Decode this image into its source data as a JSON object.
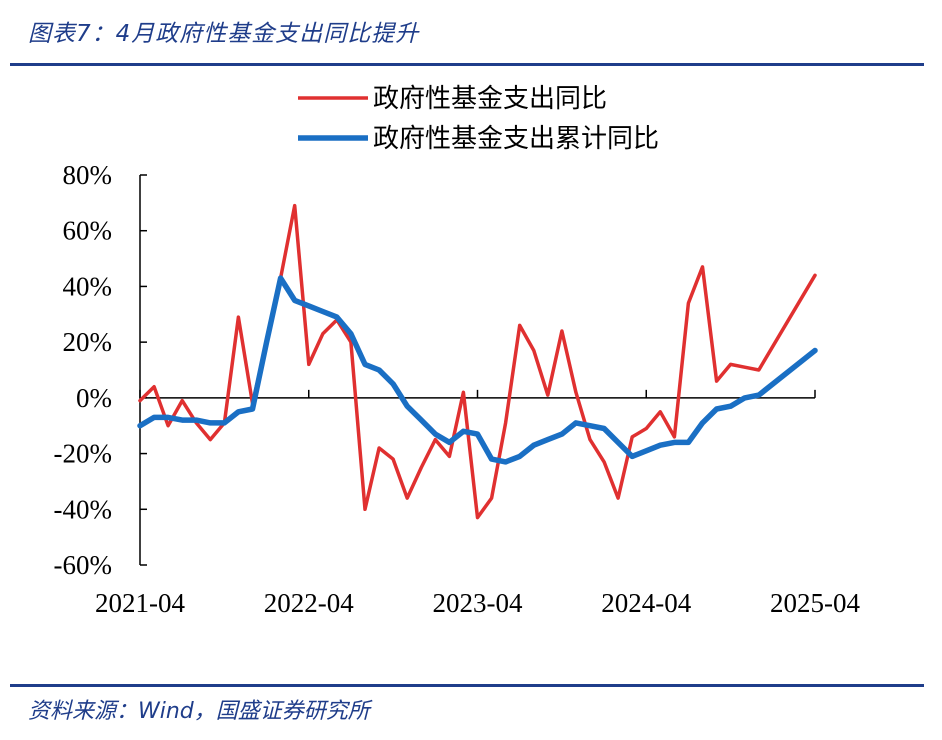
{
  "title": "图表7：4月政府性基金支出同比提升",
  "source": "资料来源：Wind，国盛证券研究所",
  "colors": {
    "accent": "#1f3d8a",
    "series_red": "#e03030",
    "series_blue": "#1a6fc4"
  },
  "chart_data": {
    "type": "line",
    "ylim": [
      -60,
      80
    ],
    "yticks": [
      -60,
      -40,
      -20,
      0,
      20,
      40,
      60,
      80
    ],
    "ytick_labels": [
      "-60%",
      "-40%",
      "-20%",
      "0%",
      "20%",
      "40%",
      "60%",
      "80%"
    ],
    "xtick_labels": [
      "2021-04",
      "2022-04",
      "2023-04",
      "2024-04",
      "2025-04"
    ],
    "legend_position": "top",
    "grid": false,
    "x": [
      "2021-04",
      "2021-05",
      "2021-06",
      "2021-07",
      "2021-08",
      "2021-09",
      "2021-10",
      "2021-11",
      "2021-12",
      "2022-01",
      "2022-02",
      "2022-03",
      "2022-04",
      "2022-05",
      "2022-06",
      "2022-07",
      "2022-08",
      "2022-09",
      "2022-10",
      "2022-11",
      "2022-12",
      "2023-01",
      "2023-02",
      "2023-03",
      "2023-04",
      "2023-05",
      "2023-06",
      "2023-07",
      "2023-08",
      "2023-09",
      "2023-10",
      "2023-11",
      "2023-12",
      "2024-01",
      "2024-02",
      "2024-03",
      "2024-04",
      "2024-05",
      "2024-06",
      "2024-07",
      "2024-08",
      "2024-09",
      "2024-10",
      "2024-11",
      "2024-12",
      "2025-01",
      "2025-02",
      "2025-03",
      "2025-04"
    ],
    "series": [
      {
        "name": "政府性基金支出同比",
        "color": "#e03030",
        "values": [
          -1,
          4,
          -10,
          -1,
          -9,
          -15,
          -9,
          29,
          -2,
          20,
          43,
          69,
          12,
          23,
          28,
          20,
          -40,
          -18,
          -22,
          -36,
          -25,
          -15,
          -21,
          2,
          -43,
          -36,
          -9,
          26,
          17,
          1,
          24,
          2,
          -15,
          -23,
          -36,
          -14,
          -11,
          -5,
          -14,
          34,
          47,
          6,
          12,
          11,
          10,
          null,
          null,
          null,
          44
        ]
      },
      {
        "name": "政府性基金支出累计同比",
        "color": "#1a6fc4",
        "values": [
          -10,
          -7,
          -7,
          -8,
          -8,
          -9,
          -9,
          -5,
          -4,
          20,
          43,
          35,
          33,
          31,
          29,
          23,
          12,
          10,
          5,
          -3,
          -8,
          -13,
          -16,
          -12,
          -13,
          -22,
          -23,
          -21,
          -17,
          -15,
          -13,
          -9,
          -10,
          -11,
          -16,
          -21,
          -19,
          -17,
          -16,
          -16,
          -9,
          -4,
          -3,
          0,
          1,
          null,
          null,
          null,
          17
        ]
      }
    ]
  }
}
